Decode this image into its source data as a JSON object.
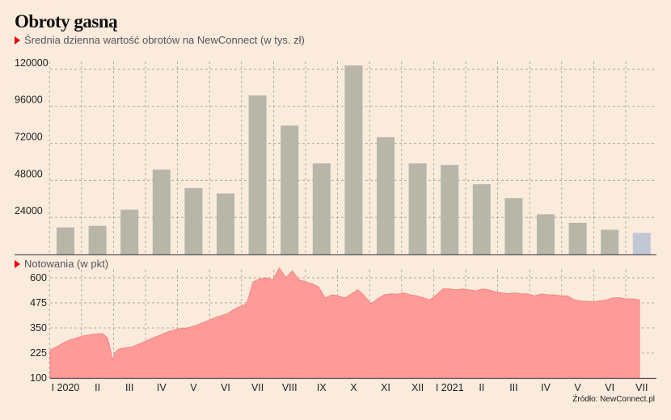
{
  "title": "Obroty gasną",
  "source": "Źródło: NewConnect.pl",
  "colors": {
    "bar": "#b8b5a9",
    "bar_last": "#c2c7d6",
    "area": "#fe9b98",
    "area_line": "#f47c79",
    "background": "#faebdc",
    "grid": "#a59c90",
    "marker": "#e3001b"
  },
  "chart_data": [
    {
      "type": "bar",
      "subtitle": "Średnia dzienna wartość obrotów na NewConnect (w tys. zł)",
      "categories": [
        "I 2020",
        "II",
        "III",
        "IV",
        "V",
        "VI",
        "VII",
        "VIII",
        "IX",
        "X",
        "XI",
        "XII",
        "I 2021",
        "II",
        "III",
        "IV",
        "V",
        "VI",
        "VII"
      ],
      "values": [
        17500,
        18500,
        29000,
        55000,
        43000,
        39500,
        103000,
        83500,
        59000,
        122500,
        76000,
        59000,
        58000,
        45500,
        36500,
        26000,
        20500,
        16000,
        14000
      ],
      "ylim": [
        0,
        122000
      ],
      "yticks": [
        24000,
        48000,
        72000,
        96000,
        120000
      ],
      "ytick_labels": [
        "24000",
        "48000",
        "72000",
        "96000",
        "120000"
      ],
      "grid": true
    },
    {
      "type": "area",
      "subtitle": "Notowania (w pkt)",
      "categories": [
        "I 2020",
        "II",
        "III",
        "IV",
        "V",
        "VI",
        "VII",
        "VIII",
        "IX",
        "X",
        "XI",
        "XII",
        "I 2021",
        "II",
        "III",
        "IV",
        "V",
        "VI",
        "VII"
      ],
      "x": [
        0,
        0.2,
        0.4,
        0.6,
        0.8,
        1.0,
        1.3,
        1.6,
        1.75,
        1.85,
        1.9,
        2.0,
        2.1,
        2.3,
        2.5,
        2.7,
        3.0,
        3.3,
        3.6,
        3.9,
        4.2,
        4.5,
        4.8,
        5.1,
        5.4,
        5.7,
        6.0,
        6.2,
        6.4,
        6.6,
        6.8,
        7.0,
        7.2,
        7.4,
        7.6,
        7.8,
        7.9,
        8.0,
        8.2,
        8.4,
        8.6,
        8.8,
        9.0,
        9.2,
        9.4,
        9.6,
        9.8,
        10.0,
        10.2,
        10.4,
        10.6,
        10.8,
        11.0,
        11.2,
        11.4,
        11.6,
        11.8,
        12.0,
        12.2,
        12.4,
        12.6,
        12.8,
        13.0,
        13.2,
        13.4,
        13.6,
        13.8,
        14.0,
        14.2,
        14.4,
        14.6,
        14.8,
        15.0,
        15.2,
        15.4,
        15.6,
        15.8,
        16.0,
        16.2,
        16.4,
        16.6,
        16.8,
        17.0,
        17.2,
        17.4,
        17.6,
        17.8,
        18.0
      ],
      "values": [
        240,
        255,
        275,
        290,
        300,
        310,
        318,
        322,
        300,
        240,
        190,
        230,
        245,
        250,
        255,
        268,
        290,
        310,
        330,
        345,
        350,
        365,
        385,
        405,
        420,
        450,
        470,
        580,
        595,
        600,
        590,
        650,
        600,
        635,
        590,
        580,
        575,
        570,
        555,
        500,
        515,
        510,
        500,
        520,
        540,
        510,
        470,
        495,
        515,
        520,
        518,
        525,
        515,
        510,
        500,
        490,
        515,
        545,
        545,
        540,
        545,
        540,
        535,
        545,
        540,
        530,
        525,
        520,
        525,
        520,
        520,
        510,
        520,
        515,
        515,
        510,
        510,
        490,
        485,
        482,
        480,
        485,
        490,
        500,
        500,
        495,
        495,
        490
      ],
      "ylim": [
        100,
        640
      ],
      "yticks": [
        100,
        225,
        350,
        475,
        600
      ],
      "ytick_labels": [
        "100",
        "225",
        "350",
        "475",
        "600"
      ],
      "grid": true
    }
  ]
}
